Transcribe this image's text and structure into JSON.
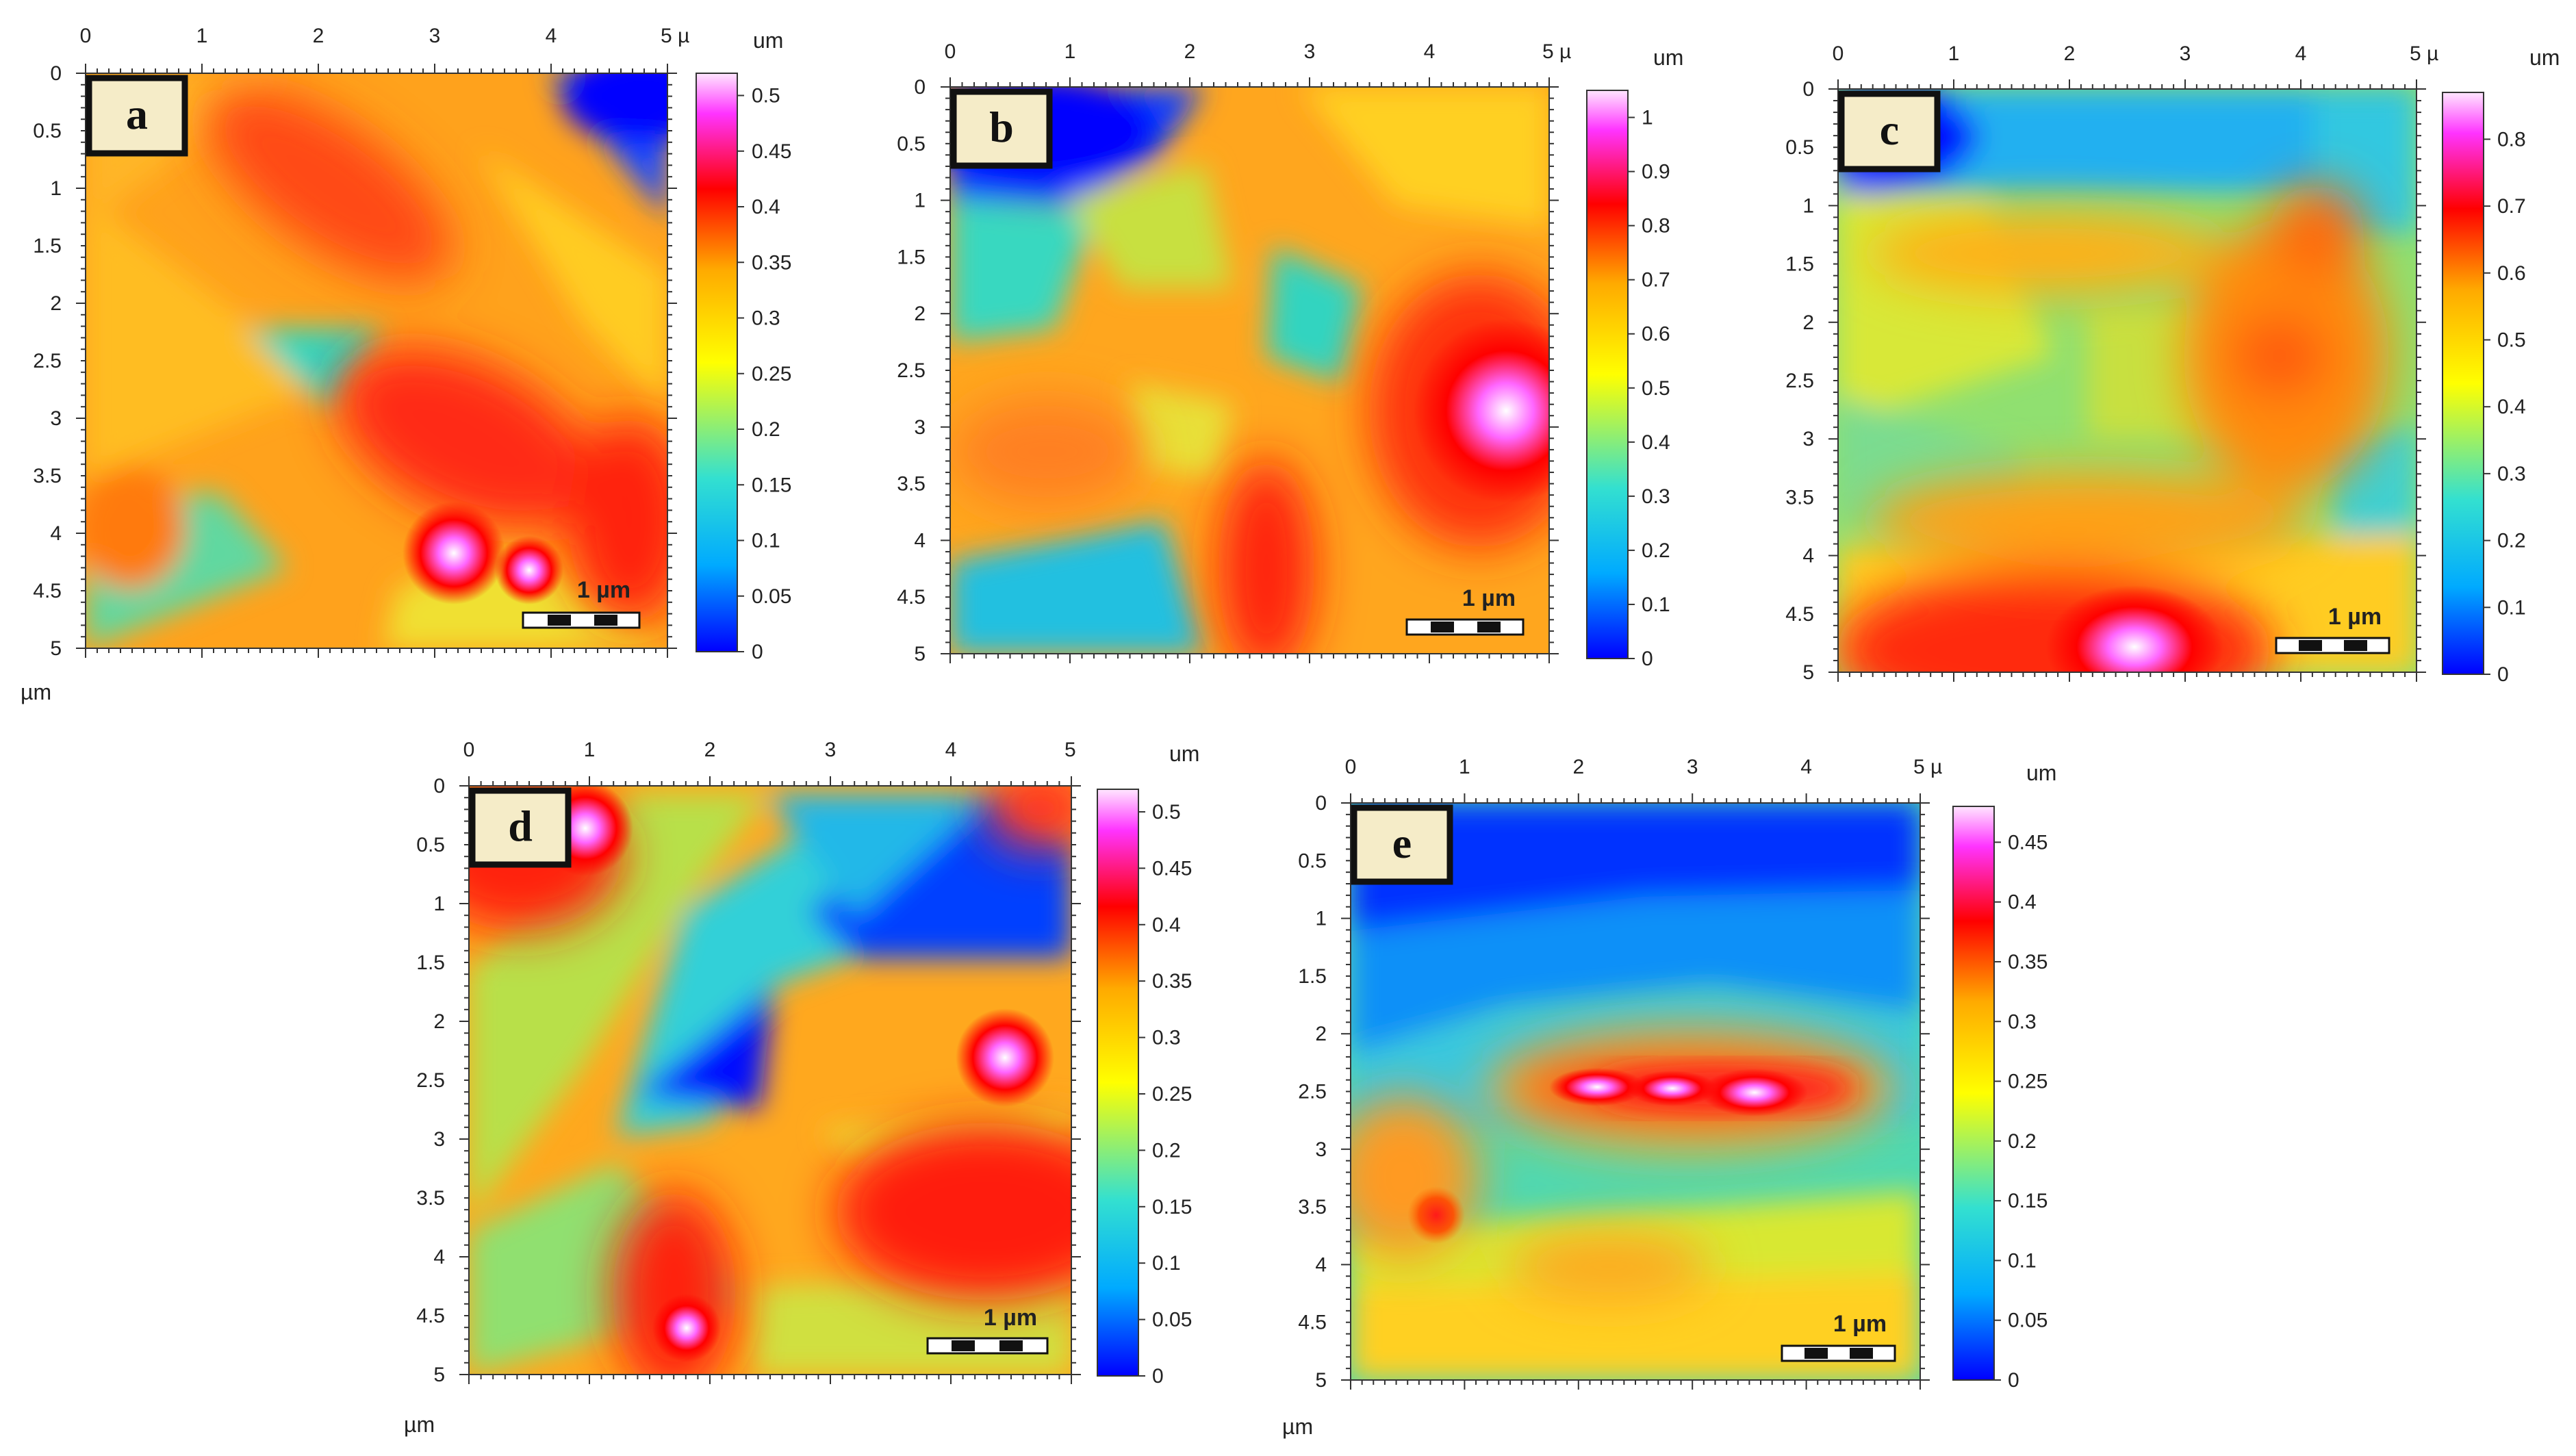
{
  "figure": {
    "panels": [
      {
        "id": "a",
        "label": "a",
        "x_ticks": [
          "0",
          "1",
          "2",
          "3",
          "4",
          "5 µ"
        ],
        "y_ticks": [
          "0",
          "0.5",
          "1",
          "1.5",
          "2",
          "2.5",
          "3",
          "3.5",
          "4",
          "4.5",
          "5"
        ],
        "axis_unit": "µm",
        "colorbar_unit": "um",
        "colorbar_ticks": [
          "0.5",
          "0.45",
          "0.4",
          "0.35",
          "0.3",
          "0.25",
          "0.2",
          "0.15",
          "0.1",
          "0.05",
          "0"
        ],
        "colorbar_range": [
          0,
          0.52
        ],
        "scale_bar": "1 µm"
      },
      {
        "id": "b",
        "label": "b",
        "x_ticks": [
          "0",
          "1",
          "2",
          "3",
          "4",
          "5 µ"
        ],
        "y_ticks": [
          "0",
          "0.5",
          "1",
          "1.5",
          "2",
          "2.5",
          "3",
          "3.5",
          "4",
          "4.5",
          "5"
        ],
        "axis_unit": "",
        "colorbar_unit": "um",
        "colorbar_ticks": [
          "1",
          "0.9",
          "0.8",
          "0.7",
          "0.6",
          "0.5",
          "0.4",
          "0.3",
          "0.2",
          "0.1",
          "0"
        ],
        "colorbar_range": [
          0,
          1.05
        ],
        "scale_bar": "1 µm"
      },
      {
        "id": "c",
        "label": "c",
        "x_ticks": [
          "0",
          "1",
          "2",
          "3",
          "4",
          "5 µ"
        ],
        "y_ticks": [
          "0",
          "0.5",
          "1",
          "1.5",
          "2",
          "2.5",
          "3",
          "3.5",
          "4",
          "4.5",
          "5"
        ],
        "axis_unit": "",
        "colorbar_unit": "um",
        "colorbar_ticks": [
          "0.8",
          "0.7",
          "0.6",
          "0.5",
          "0.4",
          "0.3",
          "0.2",
          "0.1",
          "0"
        ],
        "colorbar_range": [
          0,
          0.87
        ],
        "scale_bar": "1 µm"
      },
      {
        "id": "d",
        "label": "d",
        "x_ticks": [
          "0",
          "1",
          "2",
          "3",
          "4",
          "5"
        ],
        "y_ticks": [
          "0",
          "0.5",
          "1",
          "1.5",
          "2",
          "2.5",
          "3",
          "3.5",
          "4",
          "4.5",
          "5"
        ],
        "axis_unit": "µm",
        "colorbar_unit": "um",
        "colorbar_ticks": [
          "0.5",
          "0.45",
          "0.4",
          "0.35",
          "0.3",
          "0.25",
          "0.2",
          "0.15",
          "0.1",
          "0.05",
          "0"
        ],
        "colorbar_range": [
          0,
          0.52
        ],
        "scale_bar": "1 µm"
      },
      {
        "id": "e",
        "label": "e",
        "x_ticks": [
          "0",
          "1",
          "2",
          "3",
          "4",
          "5 µ"
        ],
        "y_ticks": [
          "0",
          "0.5",
          "1",
          "1.5",
          "2",
          "2.5",
          "3",
          "3.5",
          "4",
          "4.5",
          "5"
        ],
        "axis_unit": "µm",
        "colorbar_unit": "um",
        "colorbar_ticks": [
          "0.45",
          "0.4",
          "0.35",
          "0.3",
          "0.25",
          "0.2",
          "0.15",
          "0.1",
          "0.05",
          "0"
        ],
        "colorbar_range": [
          0,
          0.48
        ],
        "scale_bar": "1 µm"
      }
    ],
    "colormap": [
      "#0000ff",
      "#00aaff",
      "#33e0d0",
      "#ffff00",
      "#ffaa00",
      "#ff0000",
      "#ff33ff",
      "#ffe6ff"
    ]
  }
}
